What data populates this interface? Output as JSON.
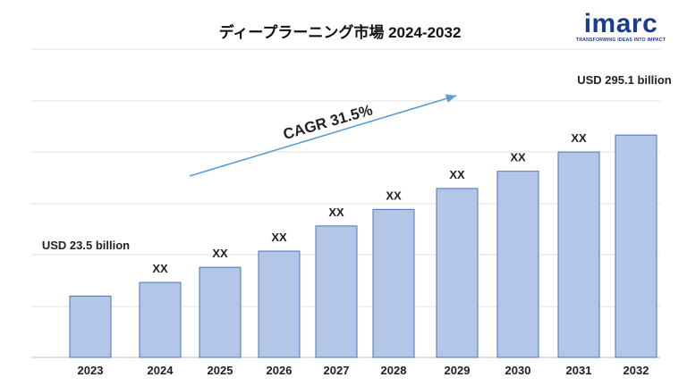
{
  "page": {
    "title": "ディープラーニング市場 2024-2032"
  },
  "logo": {
    "wordmark": "imarc",
    "tagline": "TRANSFORMING IDEAS INTO IMPACT",
    "brand_color": "#1a3d8f",
    "accent_color": "#1a9fd8"
  },
  "chart_data": {
    "type": "bar",
    "title": "ディープラーニング市場 2024-2032",
    "categories": [
      "2023",
      "2024",
      "2025",
      "2026",
      "2027",
      "2028",
      "2029",
      "2030",
      "2031",
      "2032"
    ],
    "values": [
      23.5,
      46.5,
      72.0,
      99.3,
      141.8,
      169.7,
      205.0,
      234.0,
      266.5,
      295.1
    ],
    "data_labels": [
      "USD 23.5 billion",
      "XX",
      "XX",
      "XX",
      "XX",
      "XX",
      "XX",
      "XX",
      "XX",
      "USD 295.1 billion"
    ],
    "annotation": "CAGR 31.5%",
    "ylim": [
      -80,
      440
    ],
    "grid": true,
    "legend": "none",
    "bar_color": "#b4c6e7",
    "bar_edge_color": "#4a74b5",
    "arrow_color": "#5a9bd5"
  }
}
